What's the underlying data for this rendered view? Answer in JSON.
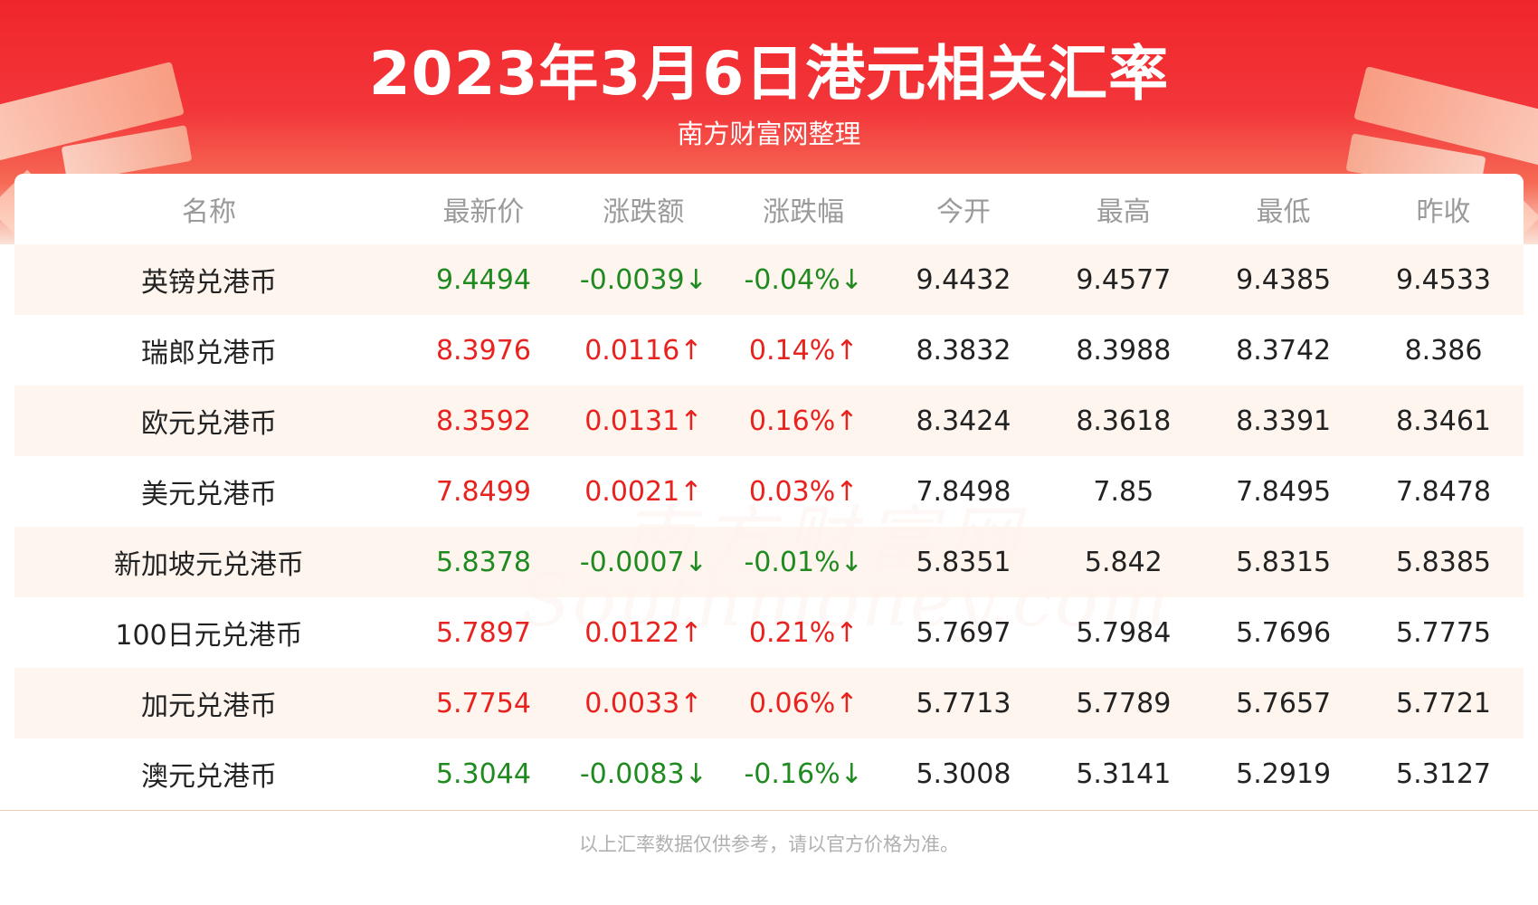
{
  "header": {
    "title": "2023年3月6日港元相关汇率",
    "subtitle": "南方财富网整理"
  },
  "watermark": {
    "cn": "南方财富网",
    "en": "Southmoney.com"
  },
  "table": {
    "columns": [
      "名称",
      "最新价",
      "涨跌额",
      "涨跌幅",
      "今开",
      "最高",
      "最低",
      "昨收"
    ],
    "rows": [
      {
        "name": "英镑兑港币",
        "latest": "9.4494",
        "change": "-0.0039↓",
        "change_pct": "-0.04%↓",
        "open": "9.4432",
        "high": "9.4577",
        "low": "9.4385",
        "prev_close": "9.4533",
        "trend": "down"
      },
      {
        "name": "瑞郎兑港币",
        "latest": "8.3976",
        "change": "0.0116↑",
        "change_pct": "0.14%↑",
        "open": "8.3832",
        "high": "8.3988",
        "low": "8.3742",
        "prev_close": "8.386",
        "trend": "up"
      },
      {
        "name": "欧元兑港币",
        "latest": "8.3592",
        "change": "0.0131↑",
        "change_pct": "0.16%↑",
        "open": "8.3424",
        "high": "8.3618",
        "low": "8.3391",
        "prev_close": "8.3461",
        "trend": "up"
      },
      {
        "name": "美元兑港币",
        "latest": "7.8499",
        "change": "0.0021↑",
        "change_pct": "0.03%↑",
        "open": "7.8498",
        "high": "7.85",
        "low": "7.8495",
        "prev_close": "7.8478",
        "trend": "up"
      },
      {
        "name": "新加坡元兑港币",
        "latest": "5.8378",
        "change": "-0.0007↓",
        "change_pct": "-0.01%↓",
        "open": "5.8351",
        "high": "5.842",
        "low": "5.8315",
        "prev_close": "5.8385",
        "trend": "down"
      },
      {
        "name": "100日元兑港币",
        "latest": "5.7897",
        "change": "0.0122↑",
        "change_pct": "0.21%↑",
        "open": "5.7697",
        "high": "5.7984",
        "low": "5.7696",
        "prev_close": "5.7775",
        "trend": "up"
      },
      {
        "name": "加元兑港币",
        "latest": "5.7754",
        "change": "0.0033↑",
        "change_pct": "0.06%↑",
        "open": "5.7713",
        "high": "5.7789",
        "low": "5.7657",
        "prev_close": "5.7721",
        "trend": "up"
      },
      {
        "name": "澳元兑港币",
        "latest": "5.3044",
        "change": "-0.0083↓",
        "change_pct": "-0.16%↓",
        "open": "5.3008",
        "high": "5.3141",
        "low": "5.2919",
        "prev_close": "5.3127",
        "trend": "down"
      }
    ]
  },
  "footer": {
    "note": "以上汇率数据仅供参考，请以官方价格为准。"
  },
  "colors": {
    "banner_red": "#f0262a",
    "up": "#e8231f",
    "down": "#1f8a1f",
    "header_text": "#9a9a9a",
    "row_tint": "#fef4ee"
  }
}
